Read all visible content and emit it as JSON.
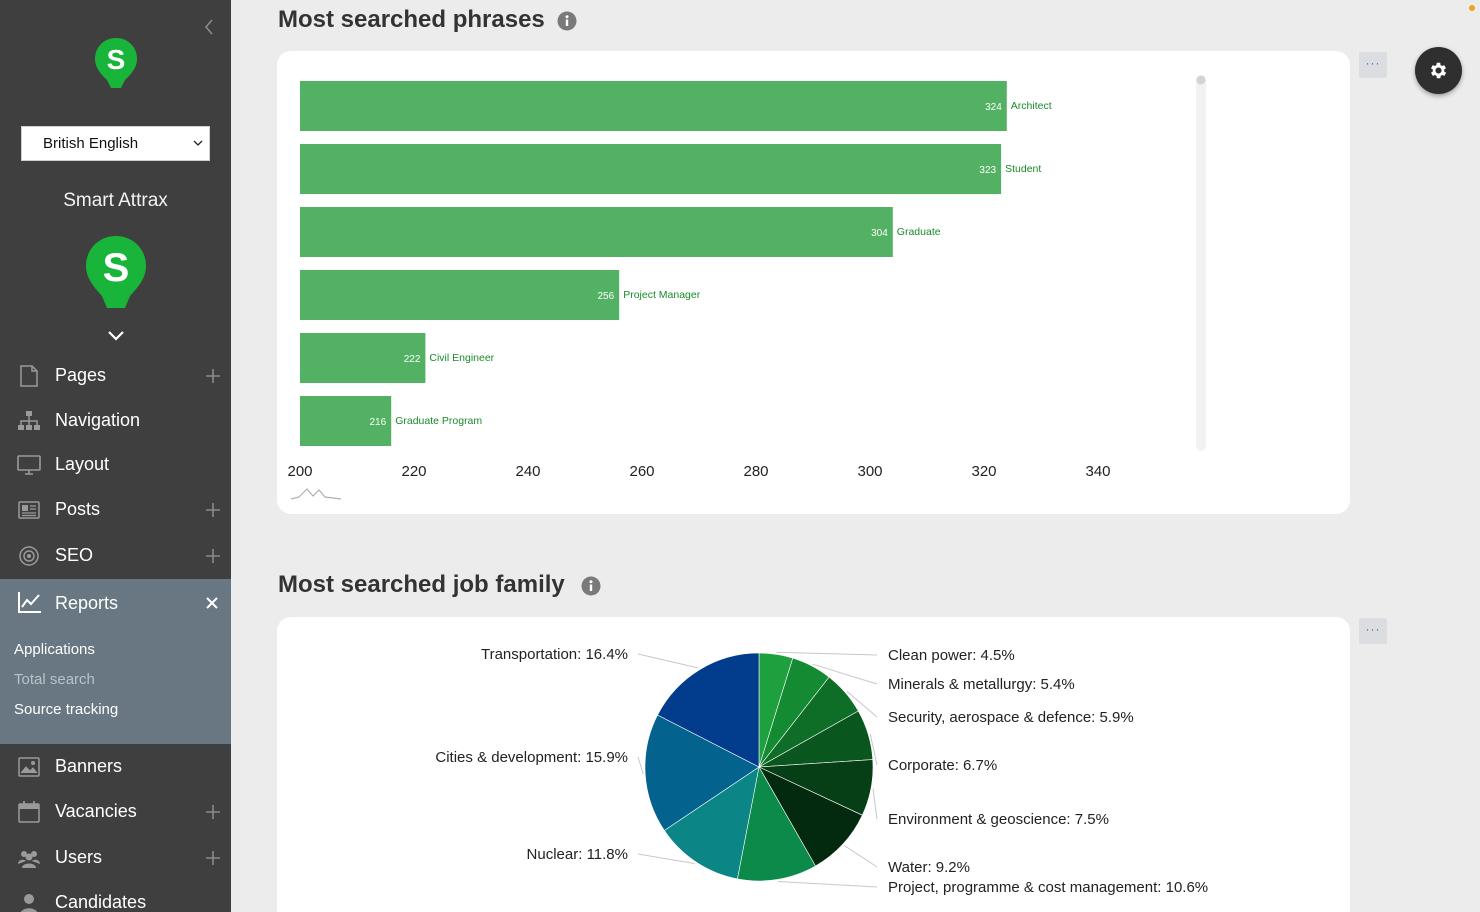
{
  "sidebar": {
    "language": "British English",
    "site_name": "Smart Attrax",
    "items": [
      {
        "label": "Pages"
      },
      {
        "label": "Navigation"
      },
      {
        "label": "Layout"
      },
      {
        "label": "Posts"
      },
      {
        "label": "SEO"
      }
    ],
    "reports": {
      "label": "Reports",
      "sub_items": [
        {
          "label": "Applications"
        },
        {
          "label": "Total search"
        },
        {
          "label": "Source tracking"
        }
      ]
    },
    "lower_items": [
      {
        "label": "Banners"
      },
      {
        "label": "Vacancies"
      },
      {
        "label": "Users"
      },
      {
        "label": "Candidates"
      }
    ]
  },
  "main": {
    "phrases_title": "Most searched phrases",
    "jobfamily_title": "Most searched job family",
    "more_label": "···"
  },
  "colors": {
    "bar": "#52b163",
    "bar_label": "#1a8a2a",
    "sidebar_bg": "#3f3f3f",
    "reports_bg": "#687782",
    "logo_green": "#19b43a"
  },
  "chart_data": [
    {
      "type": "bar",
      "orientation": "horizontal",
      "title": "Most searched phrases",
      "categories": [
        "Architect",
        "Student",
        "Graduate",
        "Project Manager",
        "Civil Engineer",
        "Graduate Program"
      ],
      "values": [
        324,
        323,
        304,
        256,
        222,
        216
      ],
      "xlim": [
        200,
        350
      ],
      "xticks": [
        200,
        220,
        240,
        260,
        280,
        300,
        320,
        340
      ]
    },
    {
      "type": "pie",
      "title": "Most searched job family",
      "slices": [
        {
          "label": "Clean power",
          "value": 4.5,
          "color": "#1ea03e"
        },
        {
          "label": "Minerals & metallurgy",
          "value": 5.4,
          "color": "#148a32"
        },
        {
          "label": "Security, aerospace & defence",
          "value": 5.9,
          "color": "#0e6e28"
        },
        {
          "label": "Corporate",
          "value": 6.7,
          "color": "#0a561f"
        },
        {
          "label": "Environment & geoscience",
          "value": 7.5,
          "color": "#063f16"
        },
        {
          "label": "Water",
          "value": 9.2,
          "color": "#032a0e"
        },
        {
          "label": "Project, programme & cost management",
          "value": 10.6,
          "color": "#0b8a4a"
        },
        {
          "label": "Nuclear",
          "value": 11.8,
          "color": "#0b8585"
        },
        {
          "label": "Cities & development",
          "value": 15.9,
          "color": "#04628e"
        },
        {
          "label": "Transportation",
          "value": 16.4,
          "color": "#023c8c"
        }
      ]
    }
  ]
}
